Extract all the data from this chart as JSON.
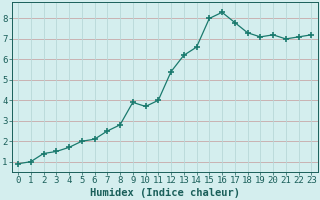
{
  "x": [
    0,
    1,
    2,
    3,
    4,
    5,
    6,
    7,
    8,
    9,
    10,
    11,
    12,
    13,
    14,
    15,
    16,
    17,
    18,
    19,
    20,
    21,
    22,
    23
  ],
  "y": [
    0.9,
    1.0,
    1.4,
    1.5,
    1.7,
    2.0,
    2.1,
    2.5,
    2.8,
    3.9,
    3.7,
    4.0,
    5.4,
    6.2,
    6.6,
    8.0,
    8.3,
    7.8,
    7.3,
    7.1,
    7.2,
    7.0,
    7.1,
    7.2
  ],
  "line_color": "#1a7a6e",
  "marker": "+",
  "marker_size": 4,
  "marker_lw": 1.2,
  "bg_color": "#d4eeee",
  "grid_color_h": "#c8a8a8",
  "grid_color_v": "#b8d8d8",
  "xlabel": "Humidex (Indice chaleur)",
  "xlim": [
    -0.5,
    23.5
  ],
  "ylim": [
    0.5,
    8.8
  ],
  "yticks": [
    1,
    2,
    3,
    4,
    5,
    6,
    7,
    8
  ],
  "xticks": [
    0,
    1,
    2,
    3,
    4,
    5,
    6,
    7,
    8,
    9,
    10,
    11,
    12,
    13,
    14,
    15,
    16,
    17,
    18,
    19,
    20,
    21,
    22,
    23
  ],
  "tick_color": "#1a5f5a",
  "label_color": "#1a5f5a",
  "label_fontsize": 7.5,
  "tick_fontsize": 6.5
}
